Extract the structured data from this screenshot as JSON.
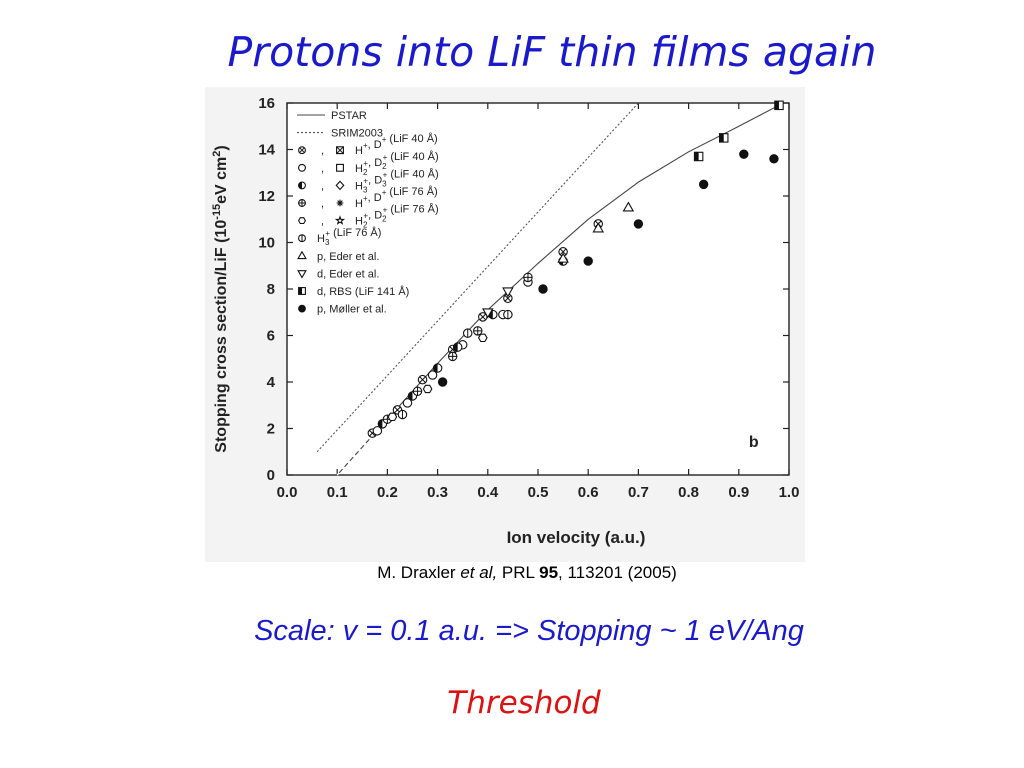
{
  "slide": {
    "title": "Protons into LiF thin films again",
    "citation": {
      "author": "M. Draxler",
      "etal": "et al,",
      "journal": "PRL",
      "volume": "95",
      "article": ", 113201 (2005)"
    },
    "scale_note": "Scale: v = 0.1 a.u. => Stopping ~ 1 eV/Ang",
    "threshold_note": "Threshold"
  },
  "chart_data": {
    "type": "scatter",
    "panel_label": "b",
    "xlabel": "Ion velocity (a.u.)",
    "ylabel_parts": [
      "Stopping cross section/LiF (10",
      "-15",
      "eV cm",
      "2",
      ")"
    ],
    "xlim": [
      0.0,
      1.0
    ],
    "ylim": [
      0,
      16
    ],
    "xticks": [
      0.0,
      0.1,
      0.2,
      0.3,
      0.4,
      0.5,
      0.6,
      0.7,
      0.8,
      0.9,
      1.0
    ],
    "xtick_labels": [
      "0.0",
      "0.1",
      "0.2",
      "0.3",
      "0.4",
      "0.5",
      "0.6",
      "0.7",
      "0.8",
      "0.9",
      "1.0"
    ],
    "yticks": [
      0,
      2,
      4,
      6,
      8,
      10,
      12,
      14,
      16
    ],
    "ytick_labels": [
      "0",
      "2",
      "4",
      "6",
      "8",
      "10",
      "12",
      "14",
      "16"
    ],
    "grid": false,
    "legend_position": "top-left",
    "legend": [
      {
        "symbols": [
          "line-solid"
        ],
        "label": "PSTAR"
      },
      {
        "symbols": [
          "line-dotted"
        ],
        "label": "SRIM2003"
      },
      {
        "symbols": [
          "circle-x",
          "square-x"
        ],
        "sep": ",",
        "label_parts": [
          [
            "H",
            "+",
            ""
          ],
          [
            ", D",
            "+",
            ""
          ],
          [
            " (LiF 40 Å)",
            "",
            ""
          ]
        ]
      },
      {
        "symbols": [
          "circle-open",
          "square-open"
        ],
        "sep": ",",
        "label_parts": [
          [
            "H",
            "+",
            "2"
          ],
          [
            ", D",
            "+",
            "2"
          ],
          [
            " (LiF 40 Å)",
            "",
            ""
          ]
        ]
      },
      {
        "symbols": [
          "circle-half",
          "diamond-open"
        ],
        "sep": ",",
        "label_parts": [
          [
            "H",
            "+",
            "3"
          ],
          [
            ", D",
            "+",
            "3"
          ],
          [
            " (LiF 40 Å)",
            "",
            ""
          ]
        ]
      },
      {
        "symbols": [
          "circle-plus",
          "asterisk"
        ],
        "sep": ",",
        "label_parts": [
          [
            "H",
            "+",
            ""
          ],
          [
            ", D",
            "+",
            ""
          ],
          [
            " (LiF 76 Å)",
            "",
            ""
          ]
        ]
      },
      {
        "symbols": [
          "hexagon-open",
          "star-open"
        ],
        "sep": ",",
        "label_parts": [
          [
            "H",
            "+",
            "2"
          ],
          [
            ", D",
            "+",
            "2"
          ],
          [
            " (LiF 76 Å)",
            "",
            ""
          ]
        ]
      },
      {
        "symbols": [
          "circle-bar"
        ],
        "label_parts": [
          [
            "H",
            "+",
            "3"
          ],
          [
            " (LiF 76 Å)",
            "",
            ""
          ]
        ]
      },
      {
        "symbols": [
          "triangle-up-open"
        ],
        "label": "p, Eder et al."
      },
      {
        "symbols": [
          "triangle-down-open"
        ],
        "label": "d, Eder et al."
      },
      {
        "symbols": [
          "square-half"
        ],
        "label": "d, RBS (LiF 141 Å)"
      },
      {
        "symbols": [
          "circle-filled"
        ],
        "label": "p, Møller et al."
      }
    ],
    "lines": [
      {
        "name": "PSTAR",
        "style": "solid",
        "x": [
          0.1,
          0.2,
          0.3,
          0.4,
          0.5,
          0.6,
          0.7,
          0.8,
          0.9,
          0.98
        ],
        "y": [
          0.0,
          2.4,
          4.8,
          7.1,
          9.1,
          11.0,
          12.6,
          13.9,
          15.0,
          15.9
        ]
      },
      {
        "name": "SRIM2003",
        "style": "dotted",
        "x": [
          0.06,
          0.7
        ],
        "y": [
          1.0,
          16.0
        ]
      }
    ],
    "series": [
      {
        "name": "H+, D+ (LiF 40 Å)",
        "marker": "circle-x",
        "x": [
          0.17,
          0.22,
          0.27,
          0.33,
          0.39,
          0.44,
          0.55,
          0.62
        ],
        "y": [
          1.8,
          2.8,
          4.1,
          5.4,
          6.8,
          7.6,
          9.6,
          10.8
        ]
      },
      {
        "name": "H2+, D2+ (LiF 40 Å)",
        "marker": "circle-open",
        "x": [
          0.18,
          0.24,
          0.29,
          0.35,
          0.43,
          0.48
        ],
        "y": [
          1.9,
          3.1,
          4.3,
          5.6,
          6.9,
          8.3
        ]
      },
      {
        "name": "H3+, D3+ (LiF 40 Å)",
        "marker": "circle-half",
        "x": [
          0.19,
          0.25,
          0.3,
          0.34,
          0.41,
          0.55
        ],
        "y": [
          2.2,
          3.4,
          4.6,
          5.5,
          6.9,
          9.2
        ]
      },
      {
        "name": "H+, D+ (LiF 76 Å)",
        "marker": "circle-plus",
        "x": [
          0.2,
          0.26,
          0.33,
          0.38,
          0.48
        ],
        "y": [
          2.4,
          3.6,
          5.1,
          6.2,
          8.5
        ]
      },
      {
        "name": "H2+, D2+ (LiF 76 Å)",
        "marker": "hexagon-open",
        "x": [
          0.21,
          0.28,
          0.39
        ],
        "y": [
          2.5,
          3.7,
          5.9
        ]
      },
      {
        "name": "H3+ (LiF 76 Å)",
        "marker": "circle-bar",
        "x": [
          0.23,
          0.36,
          0.44
        ],
        "y": [
          2.6,
          6.1,
          6.9
        ]
      },
      {
        "name": "p, Eder et al.",
        "marker": "triangle-up-open",
        "x": [
          0.55,
          0.62,
          0.68
        ],
        "y": [
          9.3,
          10.6,
          11.5
        ]
      },
      {
        "name": "d, Eder et al.",
        "marker": "triangle-down-open",
        "x": [
          0.4,
          0.44
        ],
        "y": [
          7.0,
          7.9
        ]
      },
      {
        "name": "d, RBS (LiF 141 Å)",
        "marker": "square-half",
        "x": [
          0.82,
          0.87,
          0.98
        ],
        "y": [
          13.7,
          14.5,
          15.9
        ]
      },
      {
        "name": "p, Møller et al.",
        "marker": "circle-filled",
        "x": [
          0.31,
          0.51,
          0.6,
          0.7,
          0.83,
          0.91,
          0.97
        ],
        "y": [
          4.0,
          8.0,
          9.2,
          10.8,
          12.5,
          13.8,
          13.6
        ]
      }
    ]
  }
}
